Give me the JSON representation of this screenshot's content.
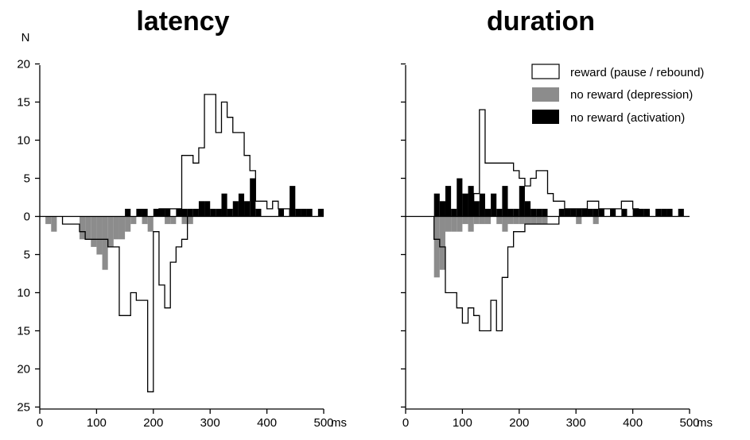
{
  "y_axis_label": "N",
  "x_unit": "ms",
  "legend": [
    {
      "label": "reward (pause / rebound)",
      "style": "outline",
      "color": "#000000"
    },
    {
      "label": "no reward (depression)",
      "style": "fill",
      "color": "#8c8c8c"
    },
    {
      "label": "no reward (activation)",
      "style": "fill",
      "color": "#000000"
    }
  ],
  "chart_data": [
    {
      "type": "histogram",
      "title": "latency",
      "xlabel": "ms",
      "ylabel": "N",
      "xlim": [
        0,
        500
      ],
      "ylim": [
        -25,
        20
      ],
      "x_ticks": [
        0,
        100,
        200,
        300,
        400,
        500
      ],
      "y_ticks_up": [
        0,
        5,
        10,
        15,
        20
      ],
      "y_ticks_down": [
        5,
        10,
        15,
        20,
        25
      ],
      "bin_width": 10,
      "series": [
        {
          "name": "reward (pause / rebound)",
          "style": "outline",
          "direction": "down",
          "bins": [
            [
              40,
              1
            ],
            [
              50,
              1
            ],
            [
              60,
              1
            ],
            [
              70,
              2
            ],
            [
              80,
              3
            ],
            [
              90,
              3
            ],
            [
              100,
              3
            ],
            [
              110,
              3
            ],
            [
              120,
              4
            ],
            [
              130,
              4
            ],
            [
              140,
              13
            ],
            [
              150,
              13
            ],
            [
              160,
              10
            ],
            [
              170,
              11
            ],
            [
              180,
              11
            ],
            [
              190,
              23
            ],
            [
              200,
              2
            ],
            [
              210,
              9
            ],
            [
              220,
              12
            ],
            [
              230,
              6
            ],
            [
              240,
              4
            ],
            [
              250,
              3
            ]
          ]
        },
        {
          "name": "reward (pause / rebound)",
          "style": "outline",
          "direction": "up",
          "bins": [
            [
              210,
              1
            ],
            [
              220,
              1
            ],
            [
              230,
              1
            ],
            [
              240,
              1
            ],
            [
              250,
              8
            ],
            [
              260,
              8
            ],
            [
              270,
              7
            ],
            [
              280,
              9
            ],
            [
              290,
              16
            ],
            [
              300,
              16
            ],
            [
              310,
              11
            ],
            [
              320,
              15
            ],
            [
              330,
              13
            ],
            [
              340,
              11
            ],
            [
              350,
              11
            ],
            [
              360,
              8
            ],
            [
              370,
              6
            ],
            [
              380,
              2
            ],
            [
              390,
              2
            ],
            [
              400,
              1
            ],
            [
              410,
              2
            ],
            [
              420,
              1
            ],
            [
              430,
              1
            ]
          ]
        },
        {
          "name": "no reward (depression)",
          "style": "fill",
          "direction": "down",
          "bins": [
            [
              10,
              1
            ],
            [
              20,
              2
            ],
            [
              70,
              3
            ],
            [
              80,
              3
            ],
            [
              90,
              4
            ],
            [
              100,
              5
            ],
            [
              110,
              7
            ],
            [
              120,
              4
            ],
            [
              130,
              3
            ],
            [
              140,
              3
            ],
            [
              150,
              2
            ],
            [
              160,
              1
            ],
            [
              180,
              1
            ],
            [
              190,
              2
            ],
            [
              220,
              1
            ],
            [
              230,
              1
            ],
            [
              250,
              1
            ],
            [
              260,
              1
            ]
          ]
        },
        {
          "name": "no reward (activation)",
          "style": "fill",
          "direction": "up",
          "bins": [
            [
              150,
              1
            ],
            [
              170,
              1
            ],
            [
              180,
              1
            ],
            [
              200,
              1
            ],
            [
              210,
              1
            ],
            [
              220,
              1
            ],
            [
              240,
              1
            ],
            [
              250,
              1
            ],
            [
              260,
              1
            ],
            [
              270,
              1
            ],
            [
              280,
              2
            ],
            [
              290,
              2
            ],
            [
              300,
              1
            ],
            [
              310,
              1
            ],
            [
              320,
              3
            ],
            [
              330,
              1
            ],
            [
              340,
              2
            ],
            [
              350,
              3
            ],
            [
              360,
              2
            ],
            [
              370,
              5
            ],
            [
              380,
              1
            ],
            [
              420,
              1
            ],
            [
              440,
              4
            ],
            [
              450,
              1
            ],
            [
              460,
              1
            ],
            [
              470,
              1
            ],
            [
              490,
              1
            ]
          ]
        }
      ]
    },
    {
      "type": "histogram",
      "title": "duration",
      "xlabel": "ms",
      "ylabel": "N",
      "xlim": [
        0,
        500
      ],
      "ylim": [
        -25,
        20
      ],
      "x_ticks": [
        0,
        100,
        200,
        300,
        400,
        500
      ],
      "bin_width": 10,
      "series": [
        {
          "name": "reward (pause / rebound)",
          "style": "outline",
          "direction": "down",
          "bins": [
            [
              50,
              3
            ],
            [
              60,
              4
            ],
            [
              70,
              10
            ],
            [
              80,
              10
            ],
            [
              90,
              12
            ],
            [
              100,
              14
            ],
            [
              110,
              12
            ],
            [
              120,
              13
            ],
            [
              130,
              15
            ],
            [
              140,
              15
            ],
            [
              150,
              11
            ],
            [
              160,
              15
            ],
            [
              170,
              8
            ],
            [
              180,
              4
            ],
            [
              190,
              2
            ],
            [
              200,
              2
            ],
            [
              210,
              1
            ],
            [
              220,
              1
            ],
            [
              230,
              1
            ],
            [
              240,
              1
            ],
            [
              250,
              1
            ],
            [
              260,
              1
            ]
          ]
        },
        {
          "name": "reward (pause / rebound)",
          "style": "outline",
          "direction": "up",
          "bins": [
            [
              120,
              3
            ],
            [
              130,
              14
            ],
            [
              140,
              7
            ],
            [
              150,
              7
            ],
            [
              160,
              7
            ],
            [
              170,
              7
            ],
            [
              180,
              7
            ],
            [
              190,
              6
            ],
            [
              200,
              5
            ],
            [
              210,
              4
            ],
            [
              220,
              5
            ],
            [
              230,
              6
            ],
            [
              240,
              6
            ],
            [
              250,
              3
            ],
            [
              260,
              2
            ],
            [
              270,
              2
            ],
            [
              280,
              1
            ],
            [
              290,
              1
            ],
            [
              300,
              1
            ],
            [
              310,
              1
            ],
            [
              320,
              2
            ],
            [
              330,
              2
            ],
            [
              340,
              1
            ],
            [
              350,
              1
            ],
            [
              360,
              1
            ],
            [
              370,
              1
            ],
            [
              380,
              2
            ],
            [
              390,
              2
            ],
            [
              400,
              1
            ]
          ]
        },
        {
          "name": "no reward (depression)",
          "style": "fill",
          "direction": "down",
          "bins": [
            [
              50,
              8
            ],
            [
              60,
              7
            ],
            [
              70,
              2
            ],
            [
              80,
              2
            ],
            [
              90,
              2
            ],
            [
              100,
              1
            ],
            [
              110,
              2
            ],
            [
              120,
              1
            ],
            [
              130,
              1
            ],
            [
              140,
              1
            ],
            [
              160,
              1
            ],
            [
              170,
              2
            ],
            [
              180,
              1
            ],
            [
              190,
              1
            ],
            [
              200,
              1
            ],
            [
              210,
              1
            ],
            [
              220,
              1
            ],
            [
              230,
              1
            ],
            [
              240,
              1
            ],
            [
              300,
              1
            ],
            [
              330,
              1
            ]
          ]
        },
        {
          "name": "no reward (activation)",
          "style": "fill",
          "direction": "up",
          "bins": [
            [
              50,
              3
            ],
            [
              60,
              2
            ],
            [
              70,
              4
            ],
            [
              80,
              1
            ],
            [
              90,
              5
            ],
            [
              100,
              3
            ],
            [
              110,
              4
            ],
            [
              120,
              2
            ],
            [
              130,
              3
            ],
            [
              140,
              1
            ],
            [
              150,
              3
            ],
            [
              160,
              1
            ],
            [
              170,
              4
            ],
            [
              180,
              1
            ],
            [
              190,
              1
            ],
            [
              200,
              4
            ],
            [
              210,
              2
            ],
            [
              220,
              1
            ],
            [
              230,
              1
            ],
            [
              240,
              1
            ],
            [
              270,
              1
            ],
            [
              280,
              1
            ],
            [
              290,
              1
            ],
            [
              300,
              1
            ],
            [
              310,
              1
            ],
            [
              320,
              1
            ],
            [
              330,
              1
            ],
            [
              340,
              1
            ],
            [
              360,
              1
            ],
            [
              380,
              1
            ],
            [
              400,
              1
            ],
            [
              410,
              1
            ],
            [
              420,
              1
            ],
            [
              440,
              1
            ],
            [
              450,
              1
            ],
            [
              460,
              1
            ],
            [
              480,
              1
            ]
          ]
        }
      ]
    }
  ]
}
